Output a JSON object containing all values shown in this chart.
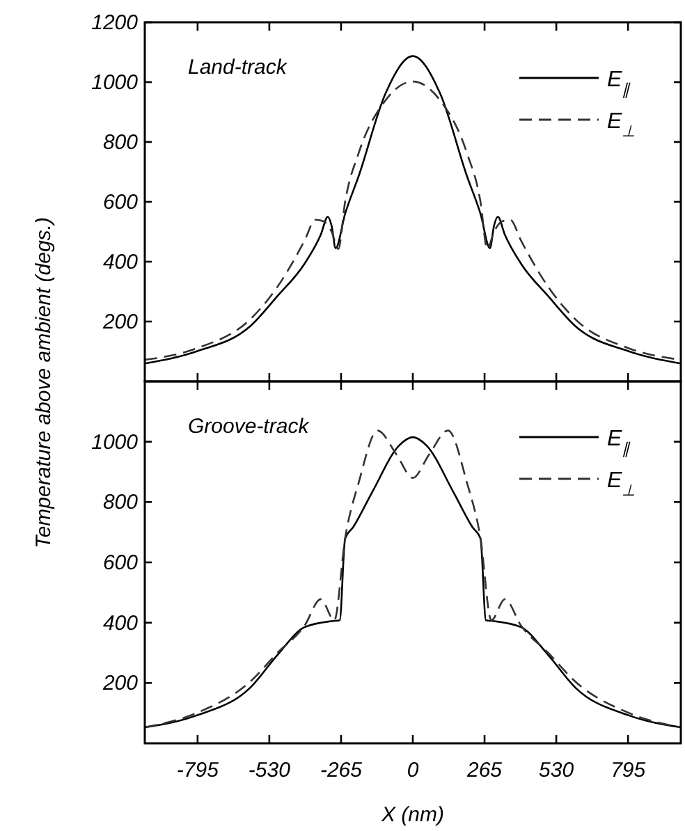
{
  "chart_data": [
    {
      "type": "line",
      "ylabel": "Temperature above ambient (degs.)",
      "annotations": [
        "Land-track"
      ],
      "xlim": [
        -990,
        990
      ],
      "xticks": [
        -795,
        -530,
        -265,
        0,
        265,
        530,
        795
      ],
      "ylim": [
        0,
        1200
      ],
      "yticks": [
        200,
        400,
        600,
        800,
        1000,
        1200
      ],
      "tick_labels": "y",
      "legend": "top right",
      "grid": false,
      "series": [
        {
          "name": "E$_{∥}$",
          "color": "#000000",
          "line_style": "solid",
          "x": [
            -990,
            -800,
            -600,
            -500,
            -400,
            -340,
            -314,
            -300,
            -285,
            -250,
            -200,
            -100,
            0,
            100,
            200,
            250,
            285,
            300,
            314,
            340,
            400,
            500,
            600,
            800,
            990
          ],
          "values": [
            60,
            100,
            185,
            285,
            393,
            490,
            550,
            520,
            445,
            560,
            686,
            964,
            1087,
            964,
            686,
            560,
            445,
            520,
            550,
            490,
            393,
            285,
            185,
            100,
            60
          ]
        },
        {
          "name": "E$_{⊥}$",
          "color": "#333333",
          "line_style": "dashed",
          "x": [
            -990,
            -800,
            -600,
            -500,
            -400,
            -360,
            -330,
            -300,
            -275,
            -250,
            -200,
            -100,
            0,
            100,
            200,
            250,
            275,
            300,
            330,
            360,
            400,
            500,
            600,
            800,
            990
          ],
          "values": [
            72,
            110,
            208,
            316,
            470,
            540,
            535,
            500,
            442,
            600,
            763,
            940,
            1002,
            940,
            763,
            600,
            442,
            500,
            535,
            540,
            470,
            316,
            208,
            110,
            72
          ]
        }
      ]
    },
    {
      "type": "line",
      "xlabel": "X (nm)",
      "annotations": [
        "Groove-track"
      ],
      "xlim": [
        -990,
        990
      ],
      "xticks": [
        -795,
        -530,
        -265,
        0,
        265,
        530,
        795
      ],
      "ylim": [
        0,
        1200
      ],
      "yticks": [
        200,
        400,
        600,
        800,
        1000
      ],
      "legend": "top right",
      "grid": false,
      "series": [
        {
          "name": "E$_{∥}$",
          "color": "#000000",
          "line_style": "solid",
          "x": [
            -990,
            -800,
            -600,
            -500,
            -400,
            -300,
            -270,
            -250,
            -220,
            -150,
            -50,
            0,
            50,
            150,
            220,
            250,
            270,
            300,
            400,
            500,
            600,
            800,
            990
          ],
          "values": [
            53,
            92,
            185,
            293,
            385,
            405,
            408,
            679,
            717,
            833,
            988,
            1015,
            988,
            833,
            717,
            679,
            408,
            405,
            385,
            293,
            185,
            92,
            53
          ]
        },
        {
          "name": "E$_{⊥}$",
          "color": "#333333",
          "line_style": "dashed",
          "x": [
            -990,
            -800,
            -600,
            -500,
            -400,
            -340,
            -290,
            -250,
            -200,
            -130,
            -60,
            0,
            60,
            130,
            200,
            250,
            290,
            340,
            400,
            500,
            600,
            800,
            990
          ],
          "values": [
            53,
            100,
            205,
            300,
            390,
            478,
            408,
            680,
            864,
            1037,
            957,
            880,
            957,
            1037,
            864,
            680,
            408,
            478,
            390,
            300,
            205,
            100,
            53
          ]
        }
      ]
    }
  ]
}
